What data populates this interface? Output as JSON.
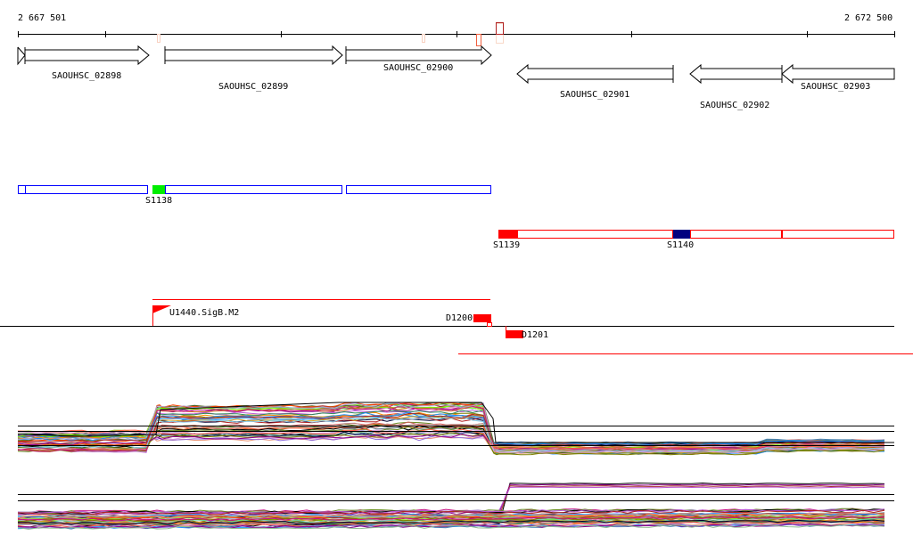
{
  "coordinates": {
    "start": "2 667 501",
    "end": "2 672 500"
  },
  "genes": [
    {
      "name": "SAOUHSC_02898",
      "strand": "+"
    },
    {
      "name": "SAOUHSC_02899",
      "strand": "+"
    },
    {
      "name": "SAOUHSC_02900",
      "strand": "+"
    },
    {
      "name": "SAOUHSC_02901",
      "strand": "-"
    },
    {
      "name": "SAOUHSC_02902",
      "strand": "-"
    },
    {
      "name": "SAOUHSC_02903",
      "strand": "-"
    }
  ],
  "segments": {
    "forward": [
      {
        "label": "S1138",
        "color": "#00ee00"
      }
    ],
    "reverse": [
      {
        "label": "S1139",
        "color": "#ff0000"
      },
      {
        "label": "S1140",
        "color": "#000080"
      }
    ],
    "forward_outline": "#0000ff",
    "reverse_outline": "#ff0000"
  },
  "features": {
    "promoter": "U1440.SigB.M2",
    "terminators": [
      "D1200",
      "D1201"
    ],
    "color": "#ff0000"
  },
  "expression_colors": [
    "#000000",
    "#000033",
    "#6b8e23",
    "#808000",
    "#7cfc00",
    "#ff4500",
    "#d2691e",
    "#8b008b",
    "#c71585",
    "#87ceeb",
    "#1e90ff",
    "#b0a0d0",
    "#dda0dd",
    "#ff6347",
    "#a52a2a",
    "#708090",
    "#9acd32",
    "#e9967a",
    "#556b2f",
    "#cd5c5c",
    "#4682b4",
    "#ba55d3",
    "#ff8c00",
    "#2e8b57",
    "#b22222",
    "#daa520",
    "#66cdaa",
    "#9370db",
    "#8fbc8f",
    "#bc8f8f"
  ]
}
